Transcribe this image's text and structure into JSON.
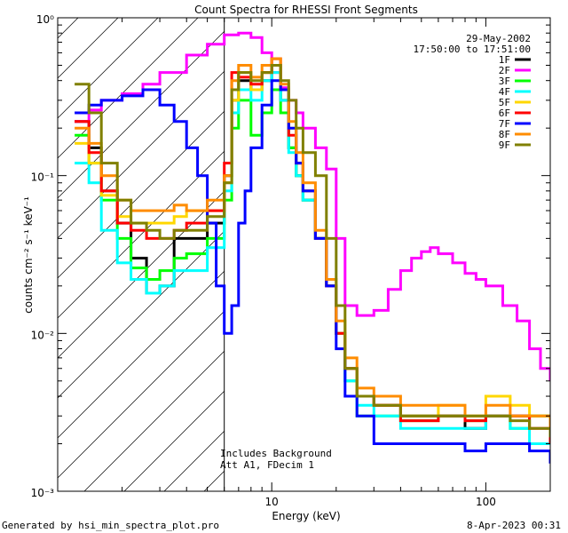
{
  "chart_data": {
    "type": "line",
    "title": "Count Spectra for RHESSI Front Segments",
    "xlabel": "Energy (keV)",
    "ylabel": "counts cm⁻² s⁻¹ keV⁻¹",
    "x_scale": "log",
    "y_scale": "log",
    "xlim": [
      1,
      200
    ],
    "ylim": [
      0.001,
      1
    ],
    "x_tick_labels": [
      "10",
      "100"
    ],
    "y_tick_labels": [
      "10⁻³",
      "10⁻²",
      "10⁻¹",
      "10⁰"
    ],
    "date": "29-May-2002",
    "time_range": "17:50:00 to 17:51:00",
    "annotation_1": "Includes Background",
    "annotation_2": "Att A1, FDecim 1",
    "attenuator_edge_kev": 6,
    "footer_left": "Generated by hsi_min_spectra_plot.pro",
    "footer_right": "8-Apr-2023 00:31",
    "series": [
      {
        "name": "1F",
        "color": "#000000",
        "points": [
          [
            1.2,
            0.22
          ],
          [
            1.4,
            0.15
          ],
          [
            1.6,
            0.08
          ],
          [
            1.9,
            0.05
          ],
          [
            2.2,
            0.03
          ],
          [
            2.6,
            0.018
          ],
          [
            3.0,
            0.02
          ],
          [
            3.5,
            0.04
          ],
          [
            4.0,
            0.04
          ],
          [
            5.0,
            0.05
          ],
          [
            6.0,
            0.1
          ],
          [
            6.5,
            0.3
          ],
          [
            7.0,
            0.4
          ],
          [
            8.0,
            0.35
          ],
          [
            9.0,
            0.4
          ],
          [
            10,
            0.5
          ],
          [
            11,
            0.3
          ],
          [
            12,
            0.15
          ],
          [
            13,
            0.1
          ],
          [
            14,
            0.07
          ],
          [
            16,
            0.04
          ],
          [
            18,
            0.02
          ],
          [
            20,
            0.01
          ],
          [
            22,
            0.006
          ],
          [
            25,
            0.004
          ],
          [
            30,
            0.0035
          ],
          [
            40,
            0.003
          ],
          [
            60,
            0.003
          ],
          [
            80,
            0.0025
          ],
          [
            100,
            0.003
          ],
          [
            130,
            0.003
          ],
          [
            160,
            0.003
          ],
          [
            200,
            0.002
          ]
        ]
      },
      {
        "name": "2F",
        "color": "#ff00ff",
        "points": [
          [
            1.2,
            0.22
          ],
          [
            1.4,
            0.26
          ],
          [
            1.6,
            0.3
          ],
          [
            2.0,
            0.33
          ],
          [
            2.5,
            0.38
          ],
          [
            3.0,
            0.45
          ],
          [
            4.0,
            0.58
          ],
          [
            5.0,
            0.68
          ],
          [
            6.0,
            0.78
          ],
          [
            7.0,
            0.8
          ],
          [
            8.0,
            0.75
          ],
          [
            9.0,
            0.6
          ],
          [
            10,
            0.45
          ],
          [
            11,
            0.36
          ],
          [
            12,
            0.3
          ],
          [
            13,
            0.25
          ],
          [
            14,
            0.2
          ],
          [
            16,
            0.15
          ],
          [
            18,
            0.11
          ],
          [
            20,
            0.04
          ],
          [
            22,
            0.015
          ],
          [
            25,
            0.013
          ],
          [
            30,
            0.014
          ],
          [
            35,
            0.019
          ],
          [
            40,
            0.025
          ],
          [
            45,
            0.03
          ],
          [
            50,
            0.033
          ],
          [
            55,
            0.035
          ],
          [
            60,
            0.032
          ],
          [
            70,
            0.028
          ],
          [
            80,
            0.024
          ],
          [
            90,
            0.022
          ],
          [
            100,
            0.02
          ],
          [
            120,
            0.015
          ],
          [
            140,
            0.012
          ],
          [
            160,
            0.008
          ],
          [
            180,
            0.006
          ],
          [
            200,
            0.005
          ]
        ]
      },
      {
        "name": "3F",
        "color": "#00ff00",
        "points": [
          [
            1.2,
            0.18
          ],
          [
            1.4,
            0.12
          ],
          [
            1.6,
            0.07
          ],
          [
            1.9,
            0.04
          ],
          [
            2.2,
            0.026
          ],
          [
            2.6,
            0.022
          ],
          [
            3.0,
            0.025
          ],
          [
            3.5,
            0.03
          ],
          [
            4.0,
            0.032
          ],
          [
            5.0,
            0.04
          ],
          [
            6.0,
            0.07
          ],
          [
            6.5,
            0.2
          ],
          [
            7.0,
            0.3
          ],
          [
            8.0,
            0.18
          ],
          [
            9.0,
            0.25
          ],
          [
            10,
            0.35
          ],
          [
            11,
            0.25
          ],
          [
            12,
            0.15
          ],
          [
            13,
            0.1
          ],
          [
            14,
            0.07
          ],
          [
            16,
            0.04
          ],
          [
            18,
            0.02
          ],
          [
            20,
            0.01
          ],
          [
            22,
            0.005
          ],
          [
            25,
            0.003
          ],
          [
            30,
            0.003
          ],
          [
            40,
            0.0028
          ],
          [
            60,
            0.003
          ],
          [
            80,
            0.0028
          ],
          [
            100,
            0.003
          ],
          [
            130,
            0.0025
          ],
          [
            160,
            0.003
          ],
          [
            200,
            0.002
          ]
        ]
      },
      {
        "name": "4F",
        "color": "#00ffff",
        "points": [
          [
            1.2,
            0.12
          ],
          [
            1.4,
            0.09
          ],
          [
            1.6,
            0.045
          ],
          [
            1.9,
            0.028
          ],
          [
            2.2,
            0.022
          ],
          [
            2.6,
            0.018
          ],
          [
            3.0,
            0.02
          ],
          [
            3.5,
            0.025
          ],
          [
            4.0,
            0.025
          ],
          [
            5.0,
            0.035
          ],
          [
            6.0,
            0.08
          ],
          [
            6.5,
            0.25
          ],
          [
            7.0,
            0.35
          ],
          [
            8.0,
            0.3
          ],
          [
            9.0,
            0.4
          ],
          [
            10,
            0.45
          ],
          [
            11,
            0.3
          ],
          [
            12,
            0.14
          ],
          [
            13,
            0.1
          ],
          [
            14,
            0.07
          ],
          [
            16,
            0.04
          ],
          [
            18,
            0.02
          ],
          [
            20,
            0.01
          ],
          [
            22,
            0.005
          ],
          [
            25,
            0.0035
          ],
          [
            30,
            0.003
          ],
          [
            40,
            0.0025
          ],
          [
            60,
            0.0025
          ],
          [
            80,
            0.0025
          ],
          [
            100,
            0.003
          ],
          [
            130,
            0.0025
          ],
          [
            160,
            0.002
          ],
          [
            200,
            0.002
          ]
        ]
      },
      {
        "name": "5F",
        "color": "#ffd700",
        "points": [
          [
            1.2,
            0.16
          ],
          [
            1.4,
            0.12
          ],
          [
            1.6,
            0.075
          ],
          [
            1.9,
            0.055
          ],
          [
            2.2,
            0.05
          ],
          [
            2.6,
            0.05
          ],
          [
            3.0,
            0.05
          ],
          [
            3.5,
            0.055
          ],
          [
            4.0,
            0.06
          ],
          [
            5.0,
            0.06
          ],
          [
            6.0,
            0.09
          ],
          [
            6.5,
            0.3
          ],
          [
            7.0,
            0.45
          ],
          [
            8.0,
            0.35
          ],
          [
            9.0,
            0.45
          ],
          [
            10,
            0.5
          ],
          [
            11,
            0.35
          ],
          [
            12,
            0.2
          ],
          [
            13,
            0.12
          ],
          [
            14,
            0.08
          ],
          [
            16,
            0.04
          ],
          [
            18,
            0.02
          ],
          [
            20,
            0.01
          ],
          [
            22,
            0.006
          ],
          [
            25,
            0.004
          ],
          [
            30,
            0.0035
          ],
          [
            40,
            0.003
          ],
          [
            60,
            0.0035
          ],
          [
            80,
            0.003
          ],
          [
            100,
            0.004
          ],
          [
            130,
            0.0035
          ],
          [
            160,
            0.003
          ],
          [
            200,
            0.0025
          ]
        ]
      },
      {
        "name": "6F",
        "color": "#ff0000",
        "points": [
          [
            1.2,
            0.22
          ],
          [
            1.4,
            0.14
          ],
          [
            1.6,
            0.08
          ],
          [
            1.9,
            0.05
          ],
          [
            2.2,
            0.045
          ],
          [
            2.6,
            0.04
          ],
          [
            3.0,
            0.04
          ],
          [
            3.5,
            0.045
          ],
          [
            4.0,
            0.05
          ],
          [
            5.0,
            0.06
          ],
          [
            6.0,
            0.12
          ],
          [
            6.5,
            0.45
          ],
          [
            7.0,
            0.42
          ],
          [
            8.0,
            0.38
          ],
          [
            9.0,
            0.45
          ],
          [
            10,
            0.55
          ],
          [
            11,
            0.35
          ],
          [
            12,
            0.18
          ],
          [
            13,
            0.12
          ],
          [
            14,
            0.08
          ],
          [
            16,
            0.04
          ],
          [
            18,
            0.02
          ],
          [
            20,
            0.01
          ],
          [
            22,
            0.006
          ],
          [
            25,
            0.004
          ],
          [
            30,
            0.0035
          ],
          [
            40,
            0.0028
          ],
          [
            60,
            0.003
          ],
          [
            80,
            0.0028
          ],
          [
            100,
            0.003
          ],
          [
            130,
            0.003
          ],
          [
            160,
            0.0025
          ],
          [
            200,
            0.002
          ]
        ]
      },
      {
        "name": "7F",
        "color": "#0000ff",
        "points": [
          [
            1.2,
            0.25
          ],
          [
            1.4,
            0.28
          ],
          [
            1.6,
            0.3
          ],
          [
            2.0,
            0.32
          ],
          [
            2.5,
            0.35
          ],
          [
            3.0,
            0.28
          ],
          [
            3.5,
            0.22
          ],
          [
            4.0,
            0.15
          ],
          [
            4.5,
            0.1
          ],
          [
            5.0,
            0.05
          ],
          [
            5.5,
            0.02
          ],
          [
            6.0,
            0.01
          ],
          [
            6.5,
            0.015
          ],
          [
            7.0,
            0.05
          ],
          [
            7.5,
            0.08
          ],
          [
            8.0,
            0.15
          ],
          [
            9.0,
            0.28
          ],
          [
            10,
            0.4
          ],
          [
            11,
            0.35
          ],
          [
            12,
            0.2
          ],
          [
            13,
            0.12
          ],
          [
            14,
            0.08
          ],
          [
            16,
            0.04
          ],
          [
            18,
            0.02
          ],
          [
            20,
            0.008
          ],
          [
            22,
            0.004
          ],
          [
            25,
            0.003
          ],
          [
            30,
            0.002
          ],
          [
            40,
            0.002
          ],
          [
            60,
            0.002
          ],
          [
            80,
            0.0018
          ],
          [
            100,
            0.002
          ],
          [
            130,
            0.002
          ],
          [
            160,
            0.0018
          ],
          [
            200,
            0.0015
          ]
        ]
      },
      {
        "name": "8F",
        "color": "#ff8c00",
        "points": [
          [
            1.2,
            0.2
          ],
          [
            1.4,
            0.16
          ],
          [
            1.6,
            0.1
          ],
          [
            1.9,
            0.07
          ],
          [
            2.2,
            0.06
          ],
          [
            2.6,
            0.06
          ],
          [
            3.0,
            0.06
          ],
          [
            3.5,
            0.065
          ],
          [
            4.0,
            0.06
          ],
          [
            5.0,
            0.07
          ],
          [
            6.0,
            0.1
          ],
          [
            6.5,
            0.4
          ],
          [
            7.0,
            0.5
          ],
          [
            8.0,
            0.42
          ],
          [
            9.0,
            0.5
          ],
          [
            10,
            0.55
          ],
          [
            11,
            0.38
          ],
          [
            12,
            0.22
          ],
          [
            13,
            0.14
          ],
          [
            14,
            0.09
          ],
          [
            16,
            0.045
          ],
          [
            18,
            0.022
          ],
          [
            20,
            0.012
          ],
          [
            22,
            0.007
          ],
          [
            25,
            0.0045
          ],
          [
            30,
            0.004
          ],
          [
            40,
            0.0035
          ],
          [
            60,
            0.0035
          ],
          [
            80,
            0.003
          ],
          [
            100,
            0.0035
          ],
          [
            130,
            0.003
          ],
          [
            160,
            0.003
          ],
          [
            200,
            0.0025
          ]
        ]
      },
      {
        "name": "9F",
        "color": "#808000",
        "points": [
          [
            1.2,
            0.38
          ],
          [
            1.4,
            0.25
          ],
          [
            1.6,
            0.12
          ],
          [
            1.9,
            0.07
          ],
          [
            2.2,
            0.05
          ],
          [
            2.6,
            0.045
          ],
          [
            3.0,
            0.04
          ],
          [
            3.5,
            0.045
          ],
          [
            4.0,
            0.045
          ],
          [
            5.0,
            0.055
          ],
          [
            6.0,
            0.09
          ],
          [
            6.5,
            0.35
          ],
          [
            7.0,
            0.45
          ],
          [
            8.0,
            0.4
          ],
          [
            9.0,
            0.45
          ],
          [
            10,
            0.5
          ],
          [
            11,
            0.4
          ],
          [
            12,
            0.3
          ],
          [
            13,
            0.2
          ],
          [
            14,
            0.14
          ],
          [
            16,
            0.1
          ],
          [
            18,
            0.04
          ],
          [
            20,
            0.015
          ],
          [
            22,
            0.006
          ],
          [
            25,
            0.004
          ],
          [
            30,
            0.0035
          ],
          [
            40,
            0.003
          ],
          [
            60,
            0.003
          ],
          [
            80,
            0.003
          ],
          [
            100,
            0.003
          ],
          [
            130,
            0.0028
          ],
          [
            160,
            0.0025
          ],
          [
            200,
            0.0022
          ]
        ]
      }
    ]
  }
}
